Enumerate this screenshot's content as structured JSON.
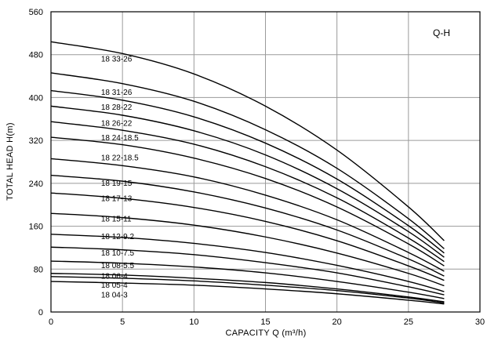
{
  "chart_data": {
    "type": "line",
    "title": "",
    "tag": "Q-H",
    "xlabel": "CAPACITY  Q (m³/h)",
    "ylabel": "TOTAL HEAD  H(m)",
    "xlim": [
      0,
      30
    ],
    "ylim": [
      0,
      560
    ],
    "x_ticks": [
      "0",
      "5",
      "10",
      "15",
      "20",
      "25",
      "30"
    ],
    "y_ticks": [
      "0",
      "80",
      "160",
      "240",
      "320",
      "400",
      "480",
      "560"
    ],
    "grid": true,
    "legend": "none",
    "x": [
      0,
      5,
      10,
      15,
      20,
      25,
      27.5
    ],
    "series": [
      {
        "name": "18 33-26",
        "values": [
          504,
          482,
          444,
          384,
          302,
          196,
          133
        ]
      },
      {
        "name": "18 31-26",
        "values": [
          446,
          426,
          393,
          340,
          268,
          174,
          118
        ]
      },
      {
        "name": "18 28-22",
        "values": [
          413,
          395,
          364,
          315,
          248,
          161,
          110
        ]
      },
      {
        "name": "18 26-22",
        "values": [
          384,
          367,
          338,
          293,
          230,
          150,
          102
        ]
      },
      {
        "name": "18 24-18.5",
        "values": [
          355,
          339,
          313,
          271,
          213,
          138,
          94
        ]
      },
      {
        "name": "18 22-18.5",
        "values": [
          326,
          312,
          287,
          249,
          196,
          127,
          86
        ]
      },
      {
        "name": "",
        "values": [
          286,
          273,
          252,
          218,
          172,
          111,
          76
        ]
      },
      {
        "name": "18 19-15",
        "values": [
          255,
          244,
          224,
          194,
          153,
          99,
          67
        ]
      },
      {
        "name": "18 17-13",
        "values": [
          222,
          212,
          195,
          169,
          133,
          86,
          59
        ]
      },
      {
        "name": "18 15-11",
        "values": [
          184,
          176,
          162,
          140,
          110,
          72,
          49
        ]
      },
      {
        "name": "18 12-9.2",
        "values": [
          145,
          139,
          128,
          111,
          87,
          57,
          38
        ]
      },
      {
        "name": "18 10-7.5",
        "values": [
          121,
          116,
          107,
          92,
          73,
          47,
          32
        ]
      },
      {
        "name": "18 08-5.5",
        "values": [
          95,
          91,
          84,
          73,
          57,
          37,
          25
        ]
      },
      {
        "name": "18 06-4",
        "values": [
          72,
          69,
          63,
          55,
          43,
          28,
          19
        ]
      },
      {
        "name": "18 05-4",
        "values": [
          66,
          63,
          58,
          50,
          40,
          26,
          17
        ]
      },
      {
        "name": "18 04-3",
        "values": [
          57,
          54,
          50,
          43,
          34,
          22,
          15
        ]
      }
    ],
    "curve_labels": [
      {
        "text": "18 33-26",
        "x": 3.5,
        "y": 473
      },
      {
        "text": "18 31-26",
        "x": 3.5,
        "y": 411
      },
      {
        "text": "18 28-22",
        "x": 3.5,
        "y": 383
      },
      {
        "text": "18 26-22",
        "x": 3.5,
        "y": 353
      },
      {
        "text": "18 24-18.5",
        "x": 3.5,
        "y": 326
      },
      {
        "text": "18 22-18.5",
        "x": 3.5,
        "y": 289
      },
      {
        "text": "18 19-15",
        "x": 3.5,
        "y": 241
      },
      {
        "text": "18 17-13",
        "x": 3.5,
        "y": 213
      },
      {
        "text": "18 15-11",
        "x": 3.5,
        "y": 175
      },
      {
        "text": "18 12-9.2",
        "x": 3.5,
        "y": 142
      },
      {
        "text": "18 10-7.5",
        "x": 3.5,
        "y": 111
      },
      {
        "text": "18 08-5.5",
        "x": 3.5,
        "y": 88
      },
      {
        "text": "18 06-4",
        "x": 3.5,
        "y": 68
      },
      {
        "text": "18 05-4",
        "x": 3.5,
        "y": 51
      },
      {
        "text": "18 04-3",
        "x": 3.5,
        "y": 33
      }
    ]
  }
}
